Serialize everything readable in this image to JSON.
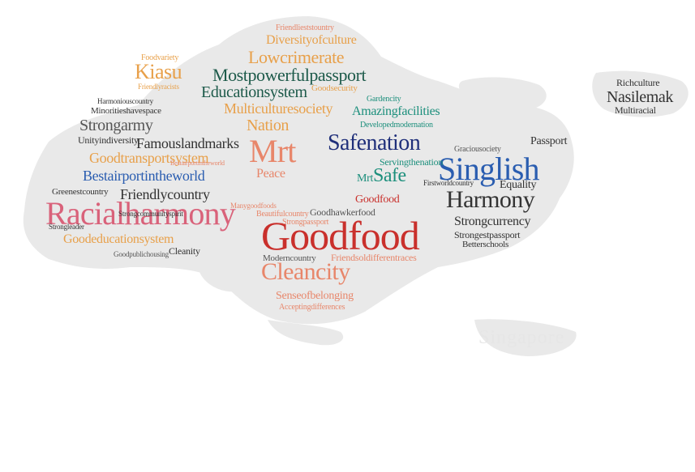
{
  "watermark": "Singapore",
  "colors": {
    "red": "#c9302c",
    "pink": "#d9627a",
    "salmon": "#e8866a",
    "orange": "#e8a04a",
    "gold": "#d9a33a",
    "navy": "#1f2f7a",
    "blue": "#2a5db0",
    "teal": "#1c8f7c",
    "darkgreen": "#1d5a4a",
    "gray": "#555555",
    "darkgray": "#333333",
    "landmass": "#e9e9e9"
  },
  "words": [
    {
      "text": "Goodfood",
      "color": "red"
    },
    {
      "text": "Racialharmony",
      "color": "pink"
    },
    {
      "text": "Singlish",
      "color": "blue"
    },
    {
      "text": "Safenation",
      "color": "navy"
    },
    {
      "text": "Harmony",
      "color": "darkgray"
    },
    {
      "text": "Mrt",
      "color": "salmon"
    },
    {
      "text": "Cleancity",
      "color": "salmon"
    },
    {
      "text": "Mostpowerfulpassport",
      "color": "darkgreen"
    },
    {
      "text": "Lowcrimerate",
      "color": "orange"
    },
    {
      "text": "Diversityofculture",
      "color": "orange"
    },
    {
      "text": "Friendlieststountry",
      "color": "salmon"
    },
    {
      "text": "Educationsystem",
      "color": "darkgreen"
    },
    {
      "text": "Multiculturesociety",
      "color": "orange"
    },
    {
      "text": "Nation",
      "color": "orange"
    },
    {
      "text": "Kiasu",
      "color": "orange"
    },
    {
      "text": "Strongarmy",
      "color": "gray"
    },
    {
      "text": "Famouslandmarks",
      "color": "darkgray"
    },
    {
      "text": "Goodtransportsystem",
      "color": "orange"
    },
    {
      "text": "Bestairportintheworld",
      "color": "blue"
    },
    {
      "text": "Friendlycountry",
      "color": "darkgray"
    },
    {
      "text": "Goodeducationsystem",
      "color": "orange"
    },
    {
      "text": "Amazingfacilities",
      "color": "teal"
    },
    {
      "text": "Servingthenation",
      "color": "teal"
    },
    {
      "text": "Safe",
      "color": "teal"
    },
    {
      "text": "Strongcurrency",
      "color": "darkgray"
    },
    {
      "text": "Strongestpassport",
      "color": "darkgray"
    },
    {
      "text": "Nasilemak",
      "color": "darkgray"
    },
    {
      "text": "Richculture",
      "color": "darkgray"
    },
    {
      "text": "Multiracial",
      "color": "darkgray"
    },
    {
      "text": "Equality",
      "color": "darkgray"
    },
    {
      "text": "Passport",
      "color": "darkgray"
    },
    {
      "text": "Senseofbelonging",
      "color": "salmon"
    },
    {
      "text": "Goodhawkerfood",
      "color": "gray"
    },
    {
      "text": "Friendsoldifferentraces",
      "color": "salmon"
    },
    {
      "text": "Peace",
      "color": "salmon"
    },
    {
      "text": "Gardencity",
      "color": "teal"
    },
    {
      "text": "Moderncountry",
      "color": "gray"
    },
    {
      "text": "Greenestcountry",
      "color": "darkgray"
    },
    {
      "text": "Unityindiversity",
      "color": "darkgray"
    },
    {
      "text": "Minoritieshavespace",
      "color": "darkgray"
    },
    {
      "text": "Harmoniouscountry",
      "color": "darkgray"
    },
    {
      "text": "Foodvariety",
      "color": "orange"
    },
    {
      "text": "Friendlyracists",
      "color": "orange"
    },
    {
      "text": "Goodsecurity",
      "color": "orange"
    },
    {
      "text": "Acceptingdifferences",
      "color": "salmon"
    },
    {
      "text": "Beautifulcountry",
      "color": "salmon"
    },
    {
      "text": "Strongpassport",
      "color": "salmon"
    },
    {
      "text": "Manygoodfoods",
      "color": "salmon"
    },
    {
      "text": "Developedmodernation",
      "color": "teal"
    },
    {
      "text": "Graciousociety",
      "color": "gray"
    },
    {
      "text": "Firstworldcountry",
      "color": "darkgray"
    },
    {
      "text": "Betterschools",
      "color": "darkgray"
    },
    {
      "text": "Cleanity",
      "color": "darkgray"
    },
    {
      "text": "Goodpublichousing",
      "color": "gray"
    },
    {
      "text": "Strongcommunityspirit",
      "color": "darkgray"
    },
    {
      "text": "Bestairportintheworld",
      "color": "salmon"
    },
    {
      "text": "Strongleader",
      "color": "darkgray"
    },
    {
      "text": "Mrt",
      "color": "teal"
    },
    {
      "text": "Goodfood",
      "color": "red"
    }
  ]
}
